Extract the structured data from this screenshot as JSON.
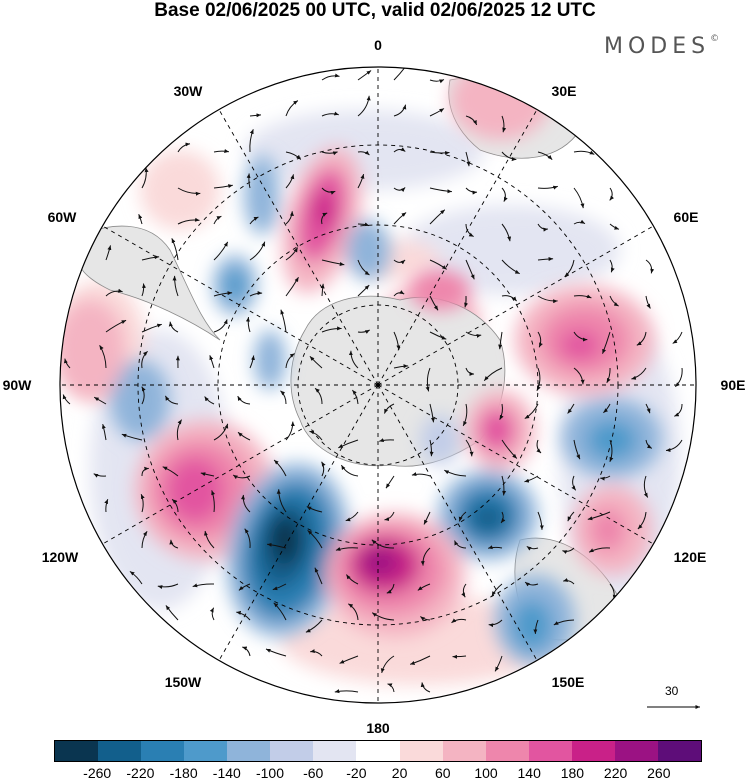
{
  "title": "Base 02/06/2025 00 UTC, valid 02/06/2025 12 UTC",
  "brand": "MODES",
  "brand_mark": "©",
  "longitude_labels": {
    "top": "0",
    "top_left": "30W",
    "top_right": "30E",
    "upper_left": "60W",
    "upper_right": "60E",
    "left": "90W",
    "right": "90E",
    "lower_left": "120W",
    "lower_right": "120E",
    "bottom_left": "150W",
    "bottom_right": "150E",
    "bottom": "180"
  },
  "vector_scale": "30",
  "colorbar": {
    "colors": [
      "#0a3550",
      "#125f8c",
      "#2a7fb3",
      "#4e9acb",
      "#8fb4da",
      "#c2cde8",
      "#e3e5f2",
      "#ffffff",
      "#fadada",
      "#f4b4c2",
      "#ee86ac",
      "#e255a0",
      "#c92188",
      "#9b1283",
      "#5e0d79"
    ],
    "ticks": [
      "-260",
      "-220",
      "-180",
      "-140",
      "-100",
      "-60",
      "-20",
      "20",
      "60",
      "100",
      "140",
      "180",
      "220",
      "260"
    ]
  },
  "map_colors": {
    "land": "#e6e6e6",
    "coast": "#8a8a8a",
    "grid": "#000000",
    "vector": "#111111"
  }
}
